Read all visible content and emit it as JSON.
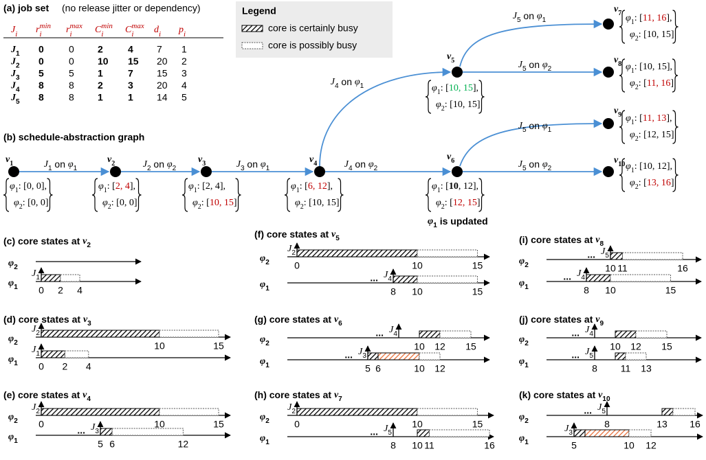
{
  "job_set": {
    "title": "(a) job set",
    "note": "(no release jitter or dependency)",
    "headers": [
      {
        "base": "J",
        "sub": "i"
      },
      {
        "base": "r",
        "sub": "i",
        "sup": "min"
      },
      {
        "base": "r",
        "sub": "i",
        "sup": "max"
      },
      {
        "base": "C",
        "sub": "i",
        "sup": "min"
      },
      {
        "base": "C",
        "sub": "i",
        "sup": "max"
      },
      {
        "base": "d",
        "sub": "i"
      },
      {
        "base": "p",
        "sub": "i"
      }
    ],
    "rows": [
      {
        "job": "J1",
        "values": [
          0,
          0,
          2,
          4,
          7,
          1
        ]
      },
      {
        "job": "J2",
        "values": [
          0,
          0,
          10,
          15,
          20,
          2
        ]
      },
      {
        "job": "J3",
        "values": [
          5,
          5,
          1,
          7,
          15,
          3
        ]
      },
      {
        "job": "J4",
        "values": [
          8,
          8,
          2,
          3,
          20,
          4
        ]
      },
      {
        "job": "J5",
        "values": [
          8,
          8,
          1,
          1,
          14,
          5
        ]
      }
    ],
    "bold_columns": [
      0,
      2,
      3
    ]
  },
  "legend": {
    "title": "Legend",
    "items": [
      "core is certainly busy",
      "core is possibly busy"
    ]
  },
  "graph": {
    "title": "(b) schedule-abstraction graph",
    "nodes": [
      {
        "label": "v1",
        "state": [
          [
            {
              "text": "φ1: [0, 0],"
            }
          ],
          [
            {
              "text": "φ2: [0, 0]"
            }
          ]
        ]
      },
      {
        "label": "v2",
        "state": [
          [
            {
              "text": "φ1: ["
            },
            {
              "text": "2, 4",
              "color": "#c00000"
            },
            {
              "text": "],"
            }
          ],
          [
            {
              "text": "φ2: [0, 0]"
            }
          ]
        ]
      },
      {
        "label": "v3",
        "state": [
          [
            {
              "text": "φ1: [2, 4],"
            }
          ],
          [
            {
              "text": "φ2: ["
            },
            {
              "text": "10, 15",
              "color": "#c00000"
            },
            {
              "text": "]"
            }
          ]
        ]
      },
      {
        "label": "v4",
        "state": [
          [
            {
              "text": "φ1: ["
            },
            {
              "text": "6, 12",
              "color": "#c00000"
            },
            {
              "text": "],"
            }
          ],
          [
            {
              "text": "φ2: [10, 15]"
            }
          ]
        ]
      },
      {
        "label": "v5",
        "state": [
          [
            {
              "text": "φ1: ["
            },
            {
              "text": "10, 15",
              "color": "#00b050"
            },
            {
              "text": "],"
            }
          ],
          [
            {
              "text": "φ2: [10, 15]"
            }
          ]
        ]
      },
      {
        "label": "v6",
        "state": [
          [
            {
              "text": "φ1: ["
            },
            {
              "text": "10",
              "bold": true
            },
            {
              "text": ", 12],"
            }
          ],
          [
            {
              "text": "φ2: ["
            },
            {
              "text": "12, 15",
              "color": "#c00000"
            },
            {
              "text": "]"
            }
          ]
        ]
      },
      {
        "label": "v7",
        "state": [
          [
            {
              "text": "φ1: ["
            },
            {
              "text": "11, 16",
              "color": "#c00000"
            },
            {
              "text": "],"
            }
          ],
          [
            {
              "text": "φ2: [10, 15]"
            }
          ]
        ]
      },
      {
        "label": "v8",
        "state": [
          [
            {
              "text": "φ1: [10, 15],"
            }
          ],
          [
            {
              "text": "φ2: ["
            },
            {
              "text": "11, 16",
              "color": "#c00000"
            },
            {
              "text": "]"
            }
          ]
        ]
      },
      {
        "label": "v9",
        "state": [
          [
            {
              "text": "φ1: ["
            },
            {
              "text": "11, 13",
              "color": "#c00000"
            },
            {
              "text": "],"
            }
          ],
          [
            {
              "text": "φ2: [12, 15]"
            }
          ]
        ]
      },
      {
        "label": "v10",
        "state": [
          [
            {
              "text": "φ1: [10, 12],"
            }
          ],
          [
            {
              "text": "φ2: ["
            },
            {
              "text": "13, 16",
              "color": "#c00000"
            },
            {
              "text": "]"
            }
          ]
        ]
      }
    ],
    "edges": [
      "J1 on φ1",
      "J2 on φ2",
      "J3 on φ1",
      "J4 on φ2",
      "J4 on φ1",
      "J5 on φ1",
      "J5 on φ2",
      "J5 on φ1",
      "J5 on φ2"
    ],
    "note": "φ1 is updated"
  },
  "panels": [
    {
      "title": "(c) core states at v2",
      "rows": [
        {
          "core": "φ2",
          "segments": [],
          "ticks": []
        },
        {
          "core": "φ1",
          "job": "J1",
          "release": 0,
          "segments": [
            {
              "kind": "certain",
              "range": [
                0,
                2
              ]
            },
            {
              "kind": "possible",
              "range": [
                2,
                4
              ]
            }
          ],
          "ticks": [
            0,
            2,
            4
          ]
        }
      ]
    },
    {
      "title": "(d) core states at v3",
      "rows": [
        {
          "core": "φ2",
          "job": "J2",
          "release": 0,
          "segments": [
            {
              "kind": "certain",
              "range": [
                0,
                10
              ]
            },
            {
              "kind": "possible",
              "range": [
                10,
                15
              ]
            }
          ],
          "ticks": [
            10,
            15
          ]
        },
        {
          "core": "φ1",
          "job": "J1",
          "release": 0,
          "segments": [
            {
              "kind": "certain",
              "range": [
                0,
                2
              ]
            },
            {
              "kind": "possible",
              "range": [
                2,
                4
              ]
            }
          ],
          "ticks": [
            0,
            2,
            4
          ]
        }
      ]
    },
    {
      "title": "(e) core states at v4",
      "rows": [
        {
          "core": "φ2",
          "job": "J2",
          "release": 0,
          "segments": [
            {
              "kind": "certain",
              "range": [
                0,
                10
              ]
            },
            {
              "kind": "possible",
              "range": [
                10,
                15
              ]
            }
          ],
          "ticks": [
            0,
            10,
            15
          ]
        },
        {
          "core": "φ1",
          "prefix": "...",
          "job": "J3",
          "release": 5,
          "segments": [
            {
              "kind": "certain",
              "range": [
                5,
                6
              ]
            },
            {
              "kind": "possible",
              "range": [
                6,
                12
              ]
            }
          ],
          "ticks": [
            5,
            6,
            12
          ]
        }
      ]
    },
    {
      "title": "(f) core states at v5",
      "rows": [
        {
          "core": "φ2",
          "job": "J2",
          "release": 0,
          "segments": [
            {
              "kind": "certain",
              "range": [
                0,
                10
              ]
            },
            {
              "kind": "possible",
              "range": [
                10,
                15
              ]
            }
          ],
          "ticks": [
            0,
            10,
            15
          ]
        },
        {
          "core": "φ1",
          "prefix": "...",
          "job": "J4",
          "release": 8,
          "segments": [
            {
              "kind": "certain",
              "range": [
                8,
                10
              ]
            },
            {
              "kind": "possible",
              "range": [
                10,
                15
              ]
            }
          ],
          "ticks": [
            8,
            10,
            15
          ]
        }
      ]
    },
    {
      "title": "(g) core states at v6",
      "rows": [
        {
          "core": "φ2",
          "prefix": "...",
          "job": "J4",
          "release": 8,
          "segments": [
            {
              "kind": "certain",
              "range": [
                10,
                12
              ]
            },
            {
              "kind": "possible",
              "range": [
                12,
                15
              ]
            }
          ],
          "ticks": [
            10,
            12,
            15
          ]
        },
        {
          "core": "φ1",
          "prefix": "...",
          "job": "J3",
          "release": 5,
          "segments": [
            {
              "kind": "certain",
              "range": [
                5,
                6
              ]
            },
            {
              "kind": "certain",
              "range": [
                6,
                10
              ],
              "color": "#e8703a"
            },
            {
              "kind": "possible",
              "range": [
                10,
                12
              ]
            }
          ],
          "ticks": [
            5,
            6,
            10,
            12
          ]
        }
      ]
    },
    {
      "title": "(h) core states at v7",
      "rows": [
        {
          "core": "φ2",
          "job": "J2",
          "release": 0,
          "segments": [
            {
              "kind": "certain",
              "range": [
                0,
                10
              ]
            },
            {
              "kind": "possible",
              "range": [
                10,
                15
              ]
            }
          ],
          "ticks": [
            0,
            10,
            15
          ]
        },
        {
          "core": "φ1",
          "prefix": "...",
          "job": "J5",
          "release": 8,
          "segments": [
            {
              "kind": "certain",
              "range": [
                10,
                11
              ]
            },
            {
              "kind": "possible",
              "range": [
                11,
                16
              ]
            }
          ],
          "ticks": [
            8,
            10,
            11,
            16
          ]
        }
      ]
    },
    {
      "title": "(i) core states at v8",
      "rows": [
        {
          "core": "φ2",
          "prefix": "...",
          "job": "J5",
          "release": 10,
          "segments": [
            {
              "kind": "certain",
              "range": [
                10,
                11
              ]
            },
            {
              "kind": "possible",
              "range": [
                11,
                16
              ]
            }
          ],
          "ticks": [
            10,
            11,
            16
          ]
        },
        {
          "core": "φ1",
          "prefix": "...",
          "job": "J4",
          "release": 8,
          "segments": [
            {
              "kind": "certain",
              "range": [
                8,
                10
              ]
            },
            {
              "kind": "possible",
              "range": [
                10,
                15
              ]
            }
          ],
          "ticks": [
            8,
            10,
            15
          ]
        }
      ]
    },
    {
      "title": "(j) core states at v9",
      "rows": [
        {
          "core": "φ2",
          "prefix": "...",
          "job": "J4",
          "release": 8,
          "segments": [
            {
              "kind": "certain",
              "range": [
                10,
                12
              ]
            },
            {
              "kind": "possible",
              "range": [
                12,
                15
              ]
            }
          ],
          "ticks": [
            10,
            12,
            15
          ]
        },
        {
          "core": "φ1",
          "prefix": "...",
          "job": "J5",
          "release": 8,
          "segments": [
            {
              "kind": "certain",
              "range": [
                10,
                11
              ]
            },
            {
              "kind": "possible",
              "range": [
                11,
                13
              ]
            }
          ],
          "ticks": [
            8,
            11,
            13
          ]
        }
      ]
    },
    {
      "title": "(k) core states at v10",
      "rows": [
        {
          "core": "φ2",
          "prefix": "...",
          "job": "J5",
          "release": 8,
          "segments": [
            {
              "kind": "certain",
              "range": [
                13,
                14
              ]
            },
            {
              "kind": "possible",
              "range": [
                14,
                16
              ]
            }
          ],
          "ticks": [
            8,
            13,
            16
          ]
        },
        {
          "core": "φ1",
          "job": "J3",
          "release": 5,
          "segments": [
            {
              "kind": "certain",
              "range": [
                5,
                6
              ]
            },
            {
              "kind": "certain",
              "range": [
                6,
                10
              ],
              "color": "#e8703a"
            },
            {
              "kind": "possible",
              "range": [
                10,
                12
              ]
            }
          ],
          "ticks": [
            5,
            10,
            12
          ]
        }
      ]
    }
  ]
}
